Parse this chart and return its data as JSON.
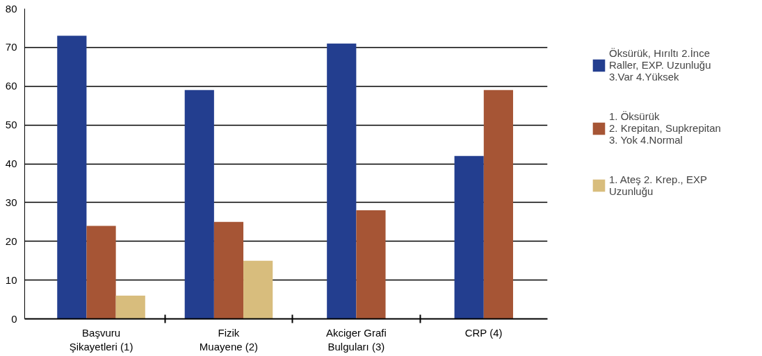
{
  "chart_data": {
    "type": "bar",
    "categories": [
      "Başvuru\nŞikayetleri (1)",
      "Fizik\nMuayene (2)",
      "Akciger Grafi\nBulguları (3)",
      "CRP (4)"
    ],
    "series": [
      {
        "name": "Öksürük, Hırıltı 2.İnce\nRaller, EXP. Uzunluğu\n3.Var 4.Yüksek",
        "color": "#233e8f",
        "values": [
          73,
          59,
          71,
          42
        ]
      },
      {
        "name": "1. Öksürük\n2. Krepitan, Supkrepitan\n3. Yok 4.Normal",
        "color": "#a65535",
        "values": [
          24,
          25,
          28,
          59
        ]
      },
      {
        "name": "1. Ateş 2. Krep., EXP\nUzunluğu",
        "color": "#d8bd7d",
        "values": [
          6,
          15,
          null,
          null
        ]
      }
    ],
    "ylim": [
      0,
      80
    ],
    "yticks": [
      0,
      10,
      20,
      30,
      40,
      50,
      60,
      70,
      80
    ],
    "grid": "y",
    "legend": "right"
  }
}
